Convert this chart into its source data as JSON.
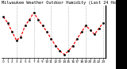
{
  "title": "Milwaukee Weather Outdoor Humidity (Last 24 Hours)",
  "line_color": "#ff0000",
  "marker_color": "#111111",
  "bg_color": "#ffffff",
  "y_values": [
    75,
    68,
    58,
    48,
    52,
    65,
    72,
    80,
    72,
    65,
    58,
    50,
    42,
    36,
    32,
    36,
    42,
    50,
    58,
    65,
    60,
    55,
    62,
    68
  ],
  "ylim": [
    28,
    88
  ],
  "yticks": [
    35,
    45,
    55,
    65,
    75,
    85
  ],
  "ylabel_fontsize": 3.5,
  "xlabel_fontsize": 3.0,
  "title_fontsize": 3.8,
  "grid_color": "#999999",
  "right_bar_color": "#000000"
}
